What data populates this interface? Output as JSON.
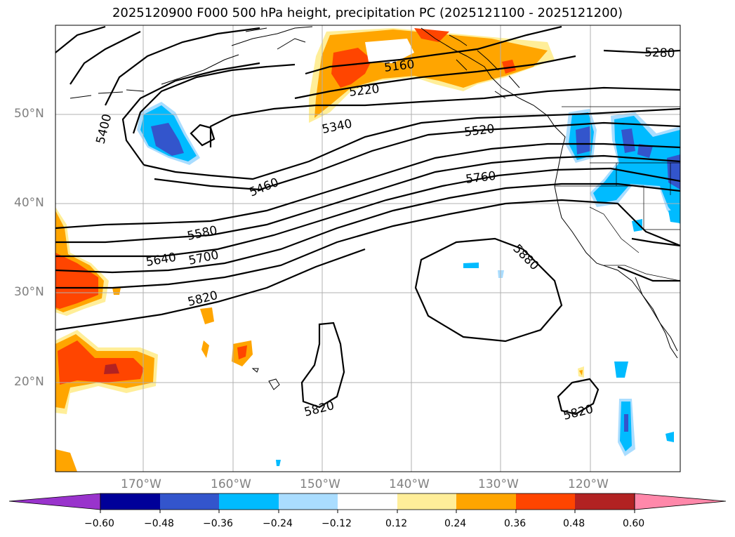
{
  "title": "2025120900 F000 500 hPa height, precipitation PC (2025121100 - 2025121200)",
  "axes": {
    "lat_labels": [
      "50°N",
      "40°N",
      "30°N",
      "20°N"
    ],
    "lon_labels": [
      "170°W",
      "160°W",
      "150°W",
      "140°W",
      "130°W",
      "120°W"
    ],
    "label_color": "#808080",
    "grid_color": "#b0b0b0"
  },
  "contour_labels": [
    "5280",
    "5160",
    "5220",
    "5400",
    "5340",
    "5520",
    "5460",
    "5760",
    "5580",
    "5640",
    "5700",
    "5880",
    "5820",
    "5820",
    "5820"
  ],
  "colorbar": {
    "ticks": [
      "−0.60",
      "−0.48",
      "−0.36",
      "−0.24",
      "−0.12",
      "0.12",
      "0.24",
      "0.36",
      "0.48",
      "0.60"
    ],
    "colors": {
      "under": "#9933cc",
      "c1": "#000099",
      "c2": "#3355cc",
      "c3": "#00bbff",
      "c4": "#aaddff",
      "c5": "#ffffff",
      "c6": "#ffee99",
      "c7": "#ffa500",
      "c8": "#ff4500",
      "c9": "#b22222",
      "over": "#ff88aa"
    }
  }
}
